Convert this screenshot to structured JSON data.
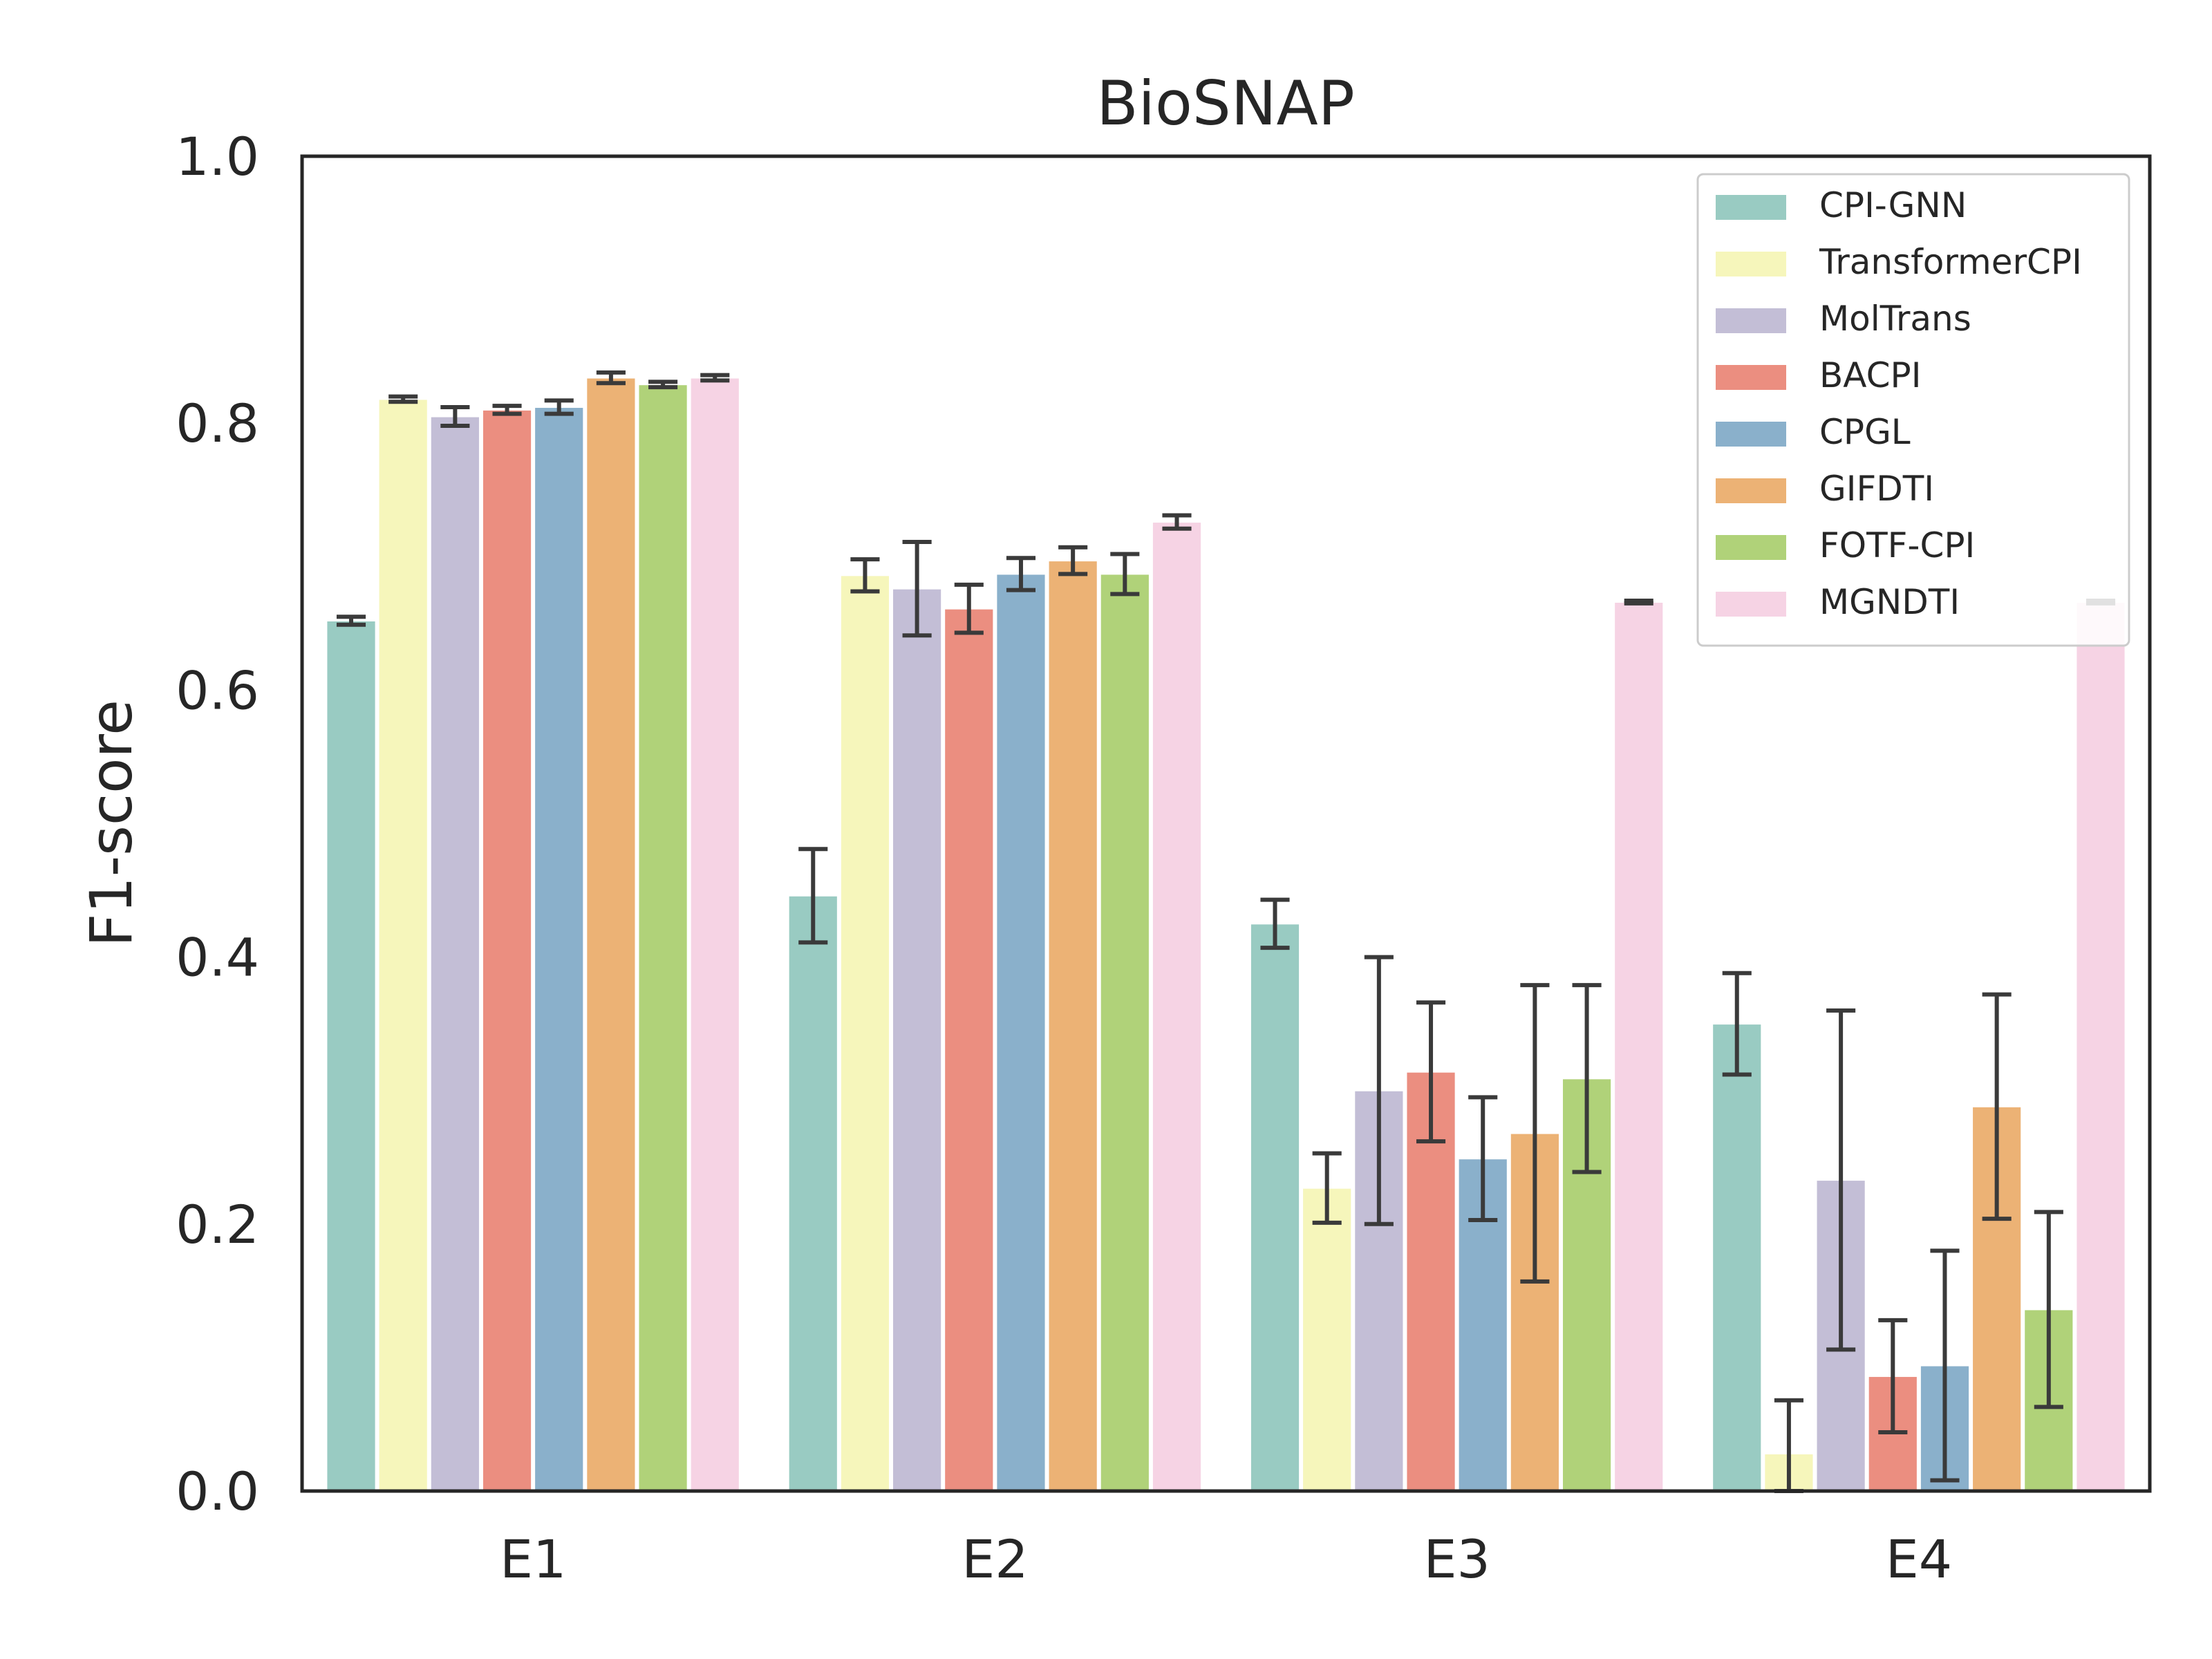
{
  "chart_data": {
    "type": "bar",
    "title": "BioSNAP",
    "xlabel": "",
    "ylabel": "F1-score",
    "ylim": [
      0,
      1.0
    ],
    "yticks": [
      "0.0",
      "0.2",
      "0.4",
      "0.6",
      "0.8",
      "1.0"
    ],
    "categories": [
      "E1",
      "E2",
      "E3",
      "E4"
    ],
    "grid": false,
    "legend_position": "top-right",
    "series": [
      {
        "name": "CPI-GNN",
        "color": "#99cbc2",
        "values": [
          0.652,
          0.446,
          0.425,
          0.35
        ],
        "errors": [
          0.003,
          0.035,
          0.018,
          0.038
        ]
      },
      {
        "name": "TransformerCPI",
        "color": "#f6f6bb",
        "values": [
          0.818,
          0.686,
          0.227,
          0.028
        ],
        "errors": [
          0.002,
          0.012,
          0.026,
          0.04
        ]
      },
      {
        "name": "MolTrans",
        "color": "#c3bed6",
        "values": [
          0.805,
          0.676,
          0.3,
          0.233
        ],
        "errors": [
          0.007,
          0.035,
          0.1,
          0.127
        ]
      },
      {
        "name": "BACPI",
        "color": "#eb8e80",
        "values": [
          0.81,
          0.661,
          0.314,
          0.086
        ],
        "errors": [
          0.003,
          0.018,
          0.052,
          0.042
        ]
      },
      {
        "name": "CPGL",
        "color": "#8ab0cb",
        "values": [
          0.812,
          0.687,
          0.249,
          0.094
        ],
        "errors": [
          0.005,
          0.012,
          0.046,
          0.086
        ]
      },
      {
        "name": "GIFDTI",
        "color": "#ecb275",
        "values": [
          0.834,
          0.697,
          0.268,
          0.288
        ],
        "errors": [
          0.004,
          0.01,
          0.111,
          0.084
        ]
      },
      {
        "name": "FOTF-CPI",
        "color": "#b0d279",
        "values": [
          0.829,
          0.687,
          0.309,
          0.136
        ],
        "errors": [
          0.002,
          0.015,
          0.07,
          0.073
        ]
      },
      {
        "name": "MGNDTI",
        "color": "#f6d3e4",
        "values": [
          0.834,
          0.726,
          0.666,
          0.666
        ],
        "errors": [
          0.002,
          0.005,
          0.001,
          0.001
        ]
      }
    ]
  }
}
